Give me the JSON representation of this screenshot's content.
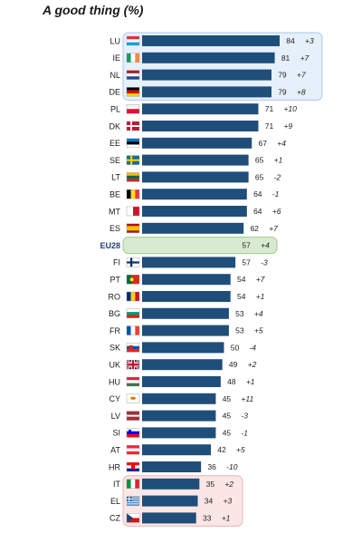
{
  "title": "A good thing (%)",
  "colors": {
    "bar": "#1f4e7a",
    "eu_bar": "#d9ead3",
    "top_box": "#e6f0fb",
    "top_box_border": "#a8c8ea",
    "bottom_box": "#fbe6e6",
    "bottom_box_border": "#e8b4b4",
    "eu_box_border": "#9ccc8a"
  },
  "chart_data": {
    "type": "bar",
    "orientation": "horizontal",
    "title": "A good thing (%)",
    "highlight": "EU28",
    "top_group": [
      "LU",
      "IE",
      "NL",
      "DE"
    ],
    "bottom_group": [
      "IT",
      "EL",
      "CZ"
    ],
    "categories": [
      "LU",
      "IE",
      "NL",
      "DE",
      "PL",
      "DK",
      "EE",
      "SE",
      "LT",
      "BE",
      "MT",
      "ES",
      "EU28",
      "FI",
      "PT",
      "RO",
      "BG",
      "FR",
      "SK",
      "UK",
      "HU",
      "CY",
      "LV",
      "SI",
      "AT",
      "HR",
      "IT",
      "EL",
      "CZ"
    ],
    "flags": [
      "flag-lu",
      "flag-ie",
      "flag-nl",
      "flag-de",
      "flag-pl",
      "flag-dk",
      "flag-ee",
      "flag-se",
      "flag-lt",
      "flag-be",
      "flag-mt",
      "flag-es",
      "flag-eu",
      "flag-fi",
      "flag-pt",
      "flag-ro",
      "flag-bg",
      "flag-fr",
      "flag-sk",
      "flag-uk",
      "flag-hu",
      "flag-cy",
      "flag-lv",
      "flag-si",
      "flag-at",
      "flag-hr",
      "flag-it",
      "flag-el",
      "flag-cz"
    ],
    "values": [
      84,
      81,
      79,
      79,
      71,
      71,
      67,
      65,
      65,
      64,
      64,
      62,
      57,
      57,
      54,
      54,
      53,
      53,
      50,
      49,
      48,
      45,
      45,
      45,
      42,
      36,
      35,
      34,
      33
    ],
    "changes": [
      "+3",
      "+7",
      "+7",
      "+8",
      "+10",
      "+9",
      "+4",
      "+1",
      "-2",
      "-1",
      "+6",
      "+7",
      "+4",
      "-3",
      "+7",
      "+1",
      "+4",
      "+5",
      "-4",
      "+2",
      "+1",
      "+11",
      "-3",
      "-1",
      "+5",
      "-10",
      "+2",
      "+3",
      "+1"
    ],
    "xlim": [
      0,
      84
    ]
  }
}
